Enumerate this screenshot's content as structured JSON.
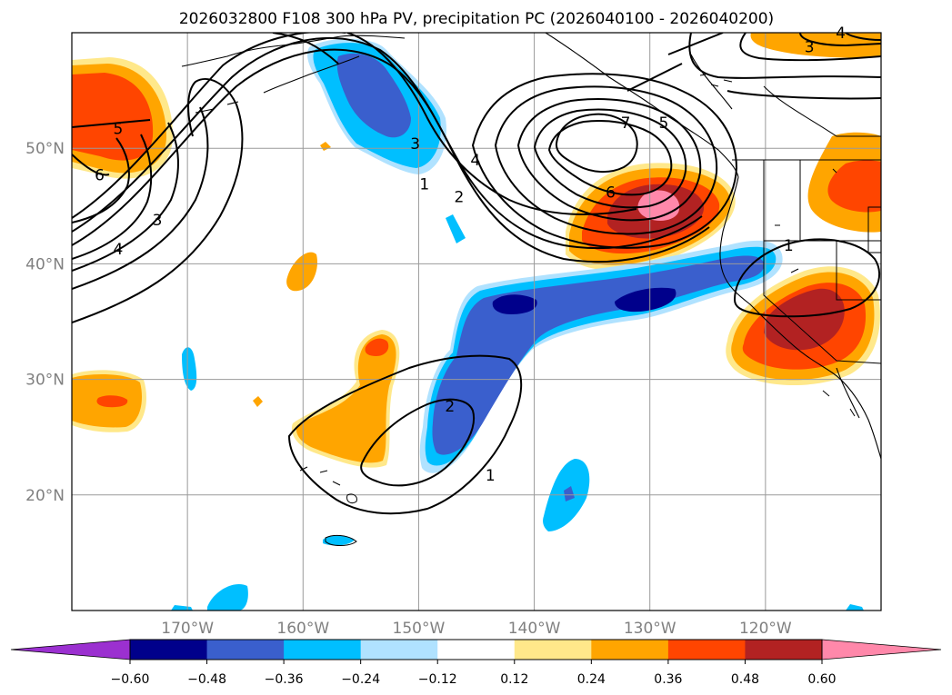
{
  "chart_data": {
    "type": "contour-map",
    "title": "2026032800 F108 300 hPa PV, precipitation PC (2026040100 - 2026040200)",
    "xlim": [
      -180,
      -110
    ],
    "ylim": [
      10,
      60
    ],
    "lon_ticks": [
      {
        "value": -170,
        "label": "170°W"
      },
      {
        "value": -160,
        "label": "160°W"
      },
      {
        "value": -150,
        "label": "150°W"
      },
      {
        "value": -140,
        "label": "140°W"
      },
      {
        "value": -130,
        "label": "130°W"
      },
      {
        "value": -120,
        "label": "120°W"
      }
    ],
    "lat_ticks": [
      {
        "value": 20,
        "label": "20°N"
      },
      {
        "value": 30,
        "label": "30°N"
      },
      {
        "value": 40,
        "label": "40°N"
      },
      {
        "value": 50,
        "label": "50°N"
      }
    ],
    "colorbar": {
      "levels": [
        -0.6,
        -0.48,
        -0.36,
        -0.24,
        -0.12,
        0.12,
        0.24,
        0.36,
        0.48,
        0.6
      ],
      "tick_labels": [
        "−0.60",
        "−0.48",
        "−0.36",
        "−0.24",
        "−0.12",
        "0.12",
        "0.24",
        "0.36",
        "0.48",
        "0.60"
      ],
      "colors": [
        "#9b30d0",
        "#00008b",
        "#3a5fcd",
        "#00bfff",
        "#b0e2ff",
        "#ffffff",
        "#ffe88a",
        "#ffa500",
        "#ff4500",
        "#b22222",
        "#ff88aa"
      ],
      "extend": "both"
    },
    "pv_contour_levels": [
      1,
      2,
      3,
      4,
      5,
      6,
      7
    ],
    "contour_labels": [
      {
        "text": "1",
        "lon": -149.5,
        "lat": 46.9
      },
      {
        "text": "2",
        "lon": -146.5,
        "lat": 45.8
      },
      {
        "text": "3",
        "lon": -150.3,
        "lat": 50.4
      },
      {
        "text": "4",
        "lon": -145.1,
        "lat": 49.0
      },
      {
        "text": "5",
        "lon": -128.8,
        "lat": 52.2
      },
      {
        "text": "6",
        "lon": -133.4,
        "lat": 46.2
      },
      {
        "text": "7",
        "lon": -132.1,
        "lat": 52.2
      },
      {
        "text": "5",
        "lon": -176.0,
        "lat": 51.7
      },
      {
        "text": "6",
        "lon": -177.6,
        "lat": 47.7
      },
      {
        "text": "4",
        "lon": -176.0,
        "lat": 41.3
      },
      {
        "text": "3",
        "lon": -172.6,
        "lat": 43.8
      },
      {
        "text": "1",
        "lon": -118.0,
        "lat": 41.6
      },
      {
        "text": "2",
        "lon": -147.3,
        "lat": 27.7
      },
      {
        "text": "1",
        "lon": -143.8,
        "lat": 21.7
      },
      {
        "text": "3",
        "lon": -116.2,
        "lat": 58.8
      },
      {
        "text": "4",
        "lon": -113.5,
        "lat": 60.0
      }
    ],
    "precip_pc_anomalies": [
      {
        "name": "west-pacific-positive-anomaly",
        "lon": -176.0,
        "lat": 51.7,
        "max_value": 0.48
      },
      {
        "name": "northeast-pacific-peak-positive",
        "lon": -130.7,
        "lat": 45.2,
        "max_value": 0.6
      },
      {
        "name": "california-positive-anomaly",
        "lon": -117.0,
        "lat": 35.8,
        "max_value": 0.48
      },
      {
        "name": "washington-positive-anomaly",
        "lon": -111.0,
        "lat": 46.0,
        "max_value": 0.36
      },
      {
        "name": "gulf-of-alaska-negative-anomaly",
        "lon": -153.0,
        "lat": 53.3,
        "max_value": -0.36
      },
      {
        "name": "subtropical-moisture-plume-negative",
        "lon": -140.6,
        "lat": 34.8,
        "max_value": -0.48
      },
      {
        "name": "hawaii-north-positive-anomaly",
        "lon": -154.0,
        "lat": 25.3,
        "max_value": 0.24
      },
      {
        "name": "dateline-positive-anomaly",
        "lon": -177.0,
        "lat": 28.0,
        "max_value": 0.36
      }
    ]
  }
}
